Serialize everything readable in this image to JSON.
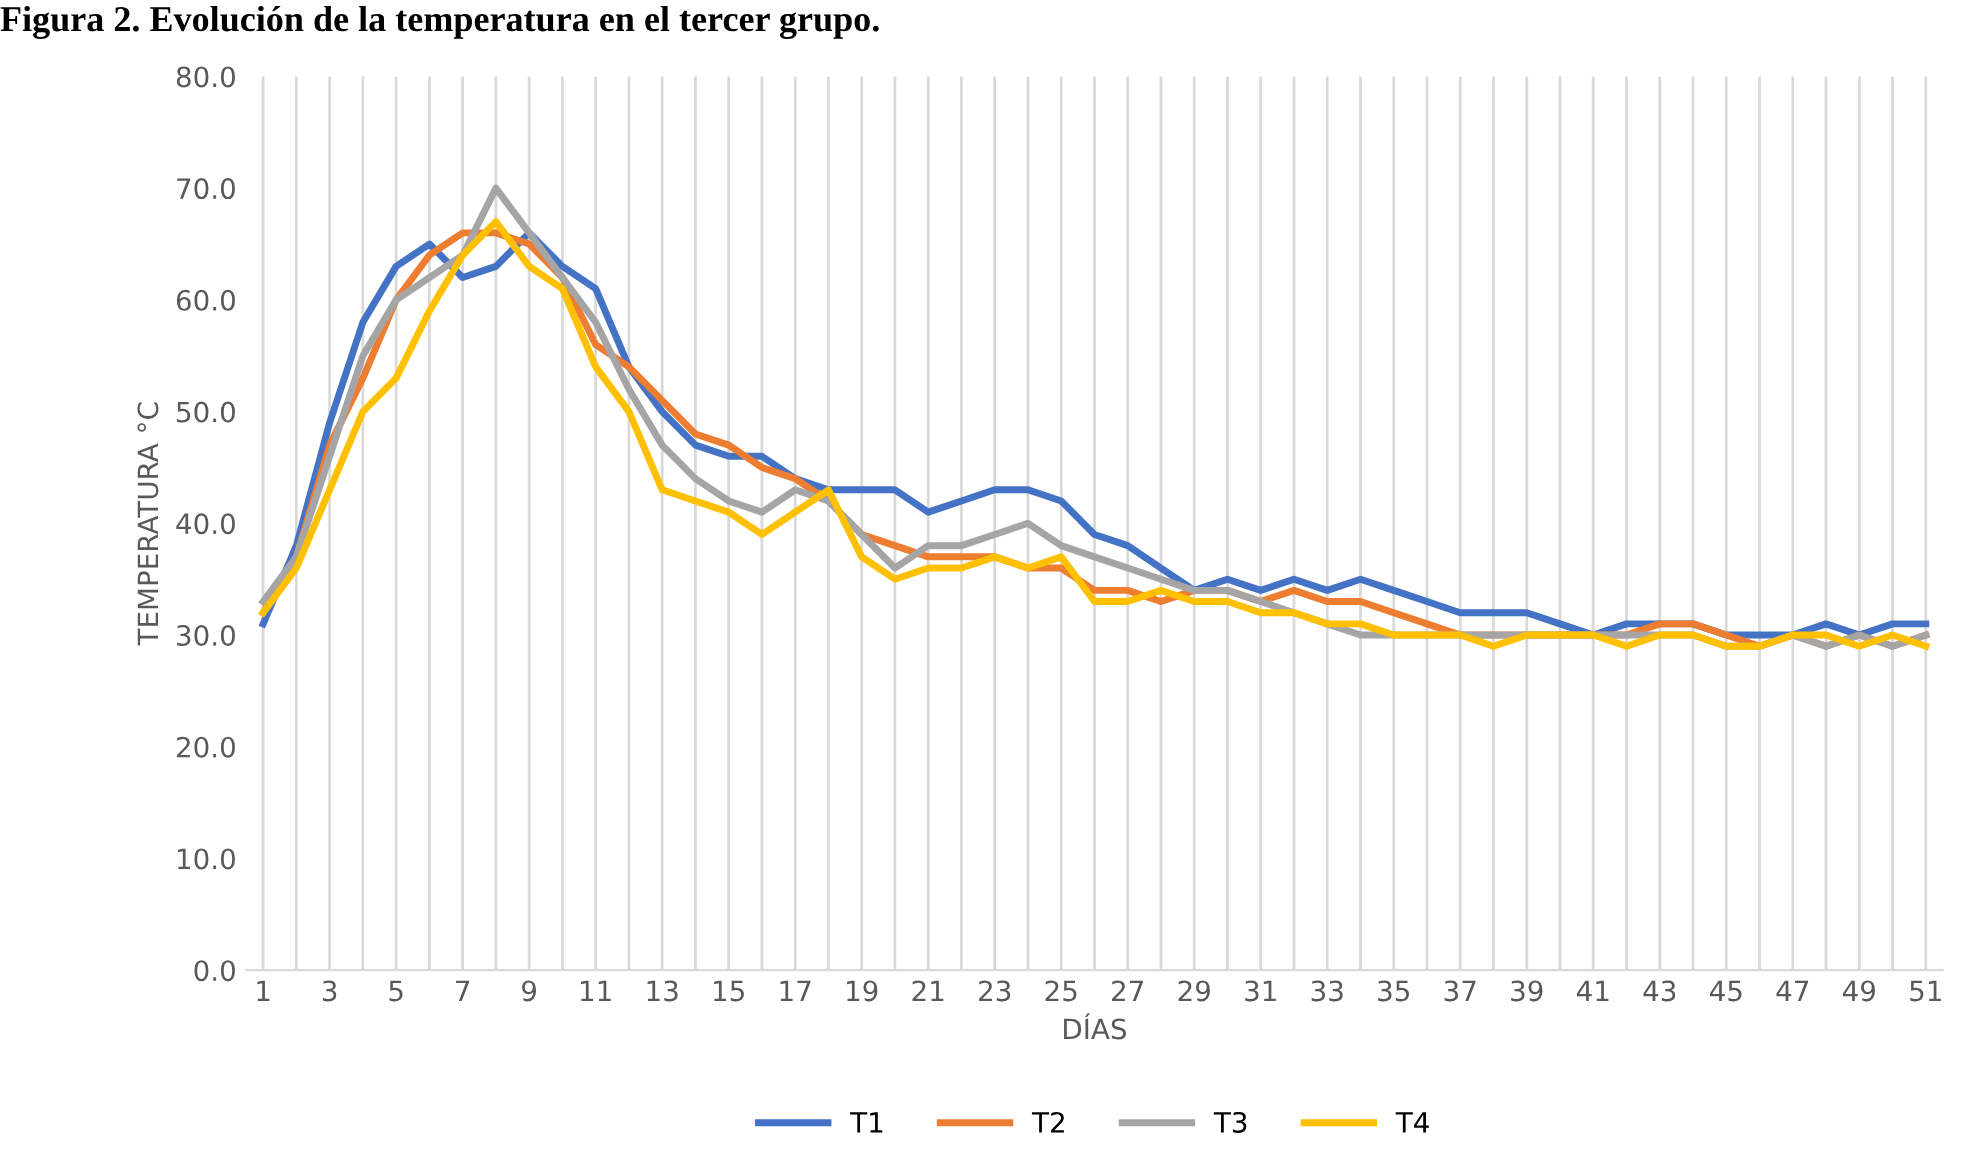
{
  "chart_data": {
    "type": "line",
    "title": "Figura 2. Evolución de la temperatura en el tercer grupo.",
    "xlabel": "DÍAS",
    "ylabel": "TEMPERATURA °C",
    "categories": [
      "1",
      null,
      "3",
      null,
      "5",
      null,
      "7",
      null,
      "9",
      null,
      "11",
      null,
      "13",
      null,
      "15",
      null,
      "17",
      null,
      "19",
      null,
      "21",
      null,
      "23",
      null,
      "25",
      null,
      "27",
      null,
      "29",
      null,
      "31",
      null,
      "33",
      null,
      "35",
      null,
      "37",
      null,
      "39",
      null,
      "41",
      null,
      "43",
      null,
      "45",
      null,
      "47",
      null,
      "49",
      null,
      "51"
    ],
    "ylim": [
      0,
      80
    ],
    "yticks": [
      {
        "value": 0,
        "label": "0.0"
      },
      {
        "value": 10,
        "label": "10.0"
      },
      {
        "value": 20,
        "label": "20.0"
      },
      {
        "value": 30,
        "label": "30.0"
      },
      {
        "value": 40,
        "label": "40.0"
      },
      {
        "value": 50,
        "label": "50.0"
      },
      {
        "value": 60,
        "label": "60.0"
      },
      {
        "value": 70,
        "label": "70.0"
      },
      {
        "value": 80,
        "label": "80.0"
      }
    ],
    "grid": "x",
    "legend": "bottom",
    "marker": "none",
    "line_style": "solid",
    "series": [
      {
        "name": "T1",
        "color": "#4472c4",
        "values": [
          31,
          38,
          49,
          58,
          63,
          65,
          62,
          63,
          66,
          63,
          61,
          54,
          50,
          47,
          46,
          46,
          44,
          43,
          43,
          43,
          41,
          42,
          43,
          43,
          42,
          39,
          38,
          36,
          34,
          35,
          34,
          35,
          34,
          35,
          34,
          33,
          32,
          32,
          32,
          31,
          30,
          31,
          31,
          31,
          30,
          30,
          30,
          31,
          30,
          31,
          31
        ]
      },
      {
        "name": "T2",
        "color": "#ed7d31",
        "values": [
          32,
          37,
          47,
          53,
          60,
          64,
          66,
          66,
          65,
          62,
          56,
          54,
          51,
          48,
          47,
          45,
          44,
          42,
          39,
          38,
          37,
          37,
          37,
          36,
          36,
          34,
          34,
          33,
          34,
          34,
          33,
          34,
          33,
          33,
          32,
          31,
          30,
          30,
          30,
          30,
          30,
          30,
          31,
          31,
          30,
          29,
          30,
          29,
          30,
          29,
          30
        ]
      },
      {
        "name": "T3",
        "color": "#a5a5a5",
        "values": [
          33,
          37,
          46,
          55,
          60,
          62,
          64,
          70,
          66,
          62,
          58,
          52,
          47,
          44,
          42,
          41,
          43,
          42,
          39,
          36,
          38,
          38,
          39,
          40,
          38,
          37,
          36,
          35,
          34,
          34,
          33,
          32,
          31,
          30,
          30,
          30,
          30,
          30,
          30,
          30,
          30,
          30,
          30,
          30,
          29,
          29,
          30,
          29,
          30,
          29,
          30
        ]
      },
      {
        "name": "T4",
        "color": "#ffc000",
        "values": [
          32,
          36,
          43,
          50,
          53,
          59,
          64,
          67,
          63,
          61,
          54,
          50,
          43,
          42,
          41,
          39,
          41,
          43,
          37,
          35,
          36,
          36,
          37,
          36,
          37,
          33,
          33,
          34,
          33,
          33,
          32,
          32,
          31,
          31,
          30,
          30,
          30,
          29,
          30,
          30,
          30,
          29,
          30,
          30,
          29,
          29,
          30,
          30,
          29,
          30,
          29
        ]
      }
    ]
  }
}
